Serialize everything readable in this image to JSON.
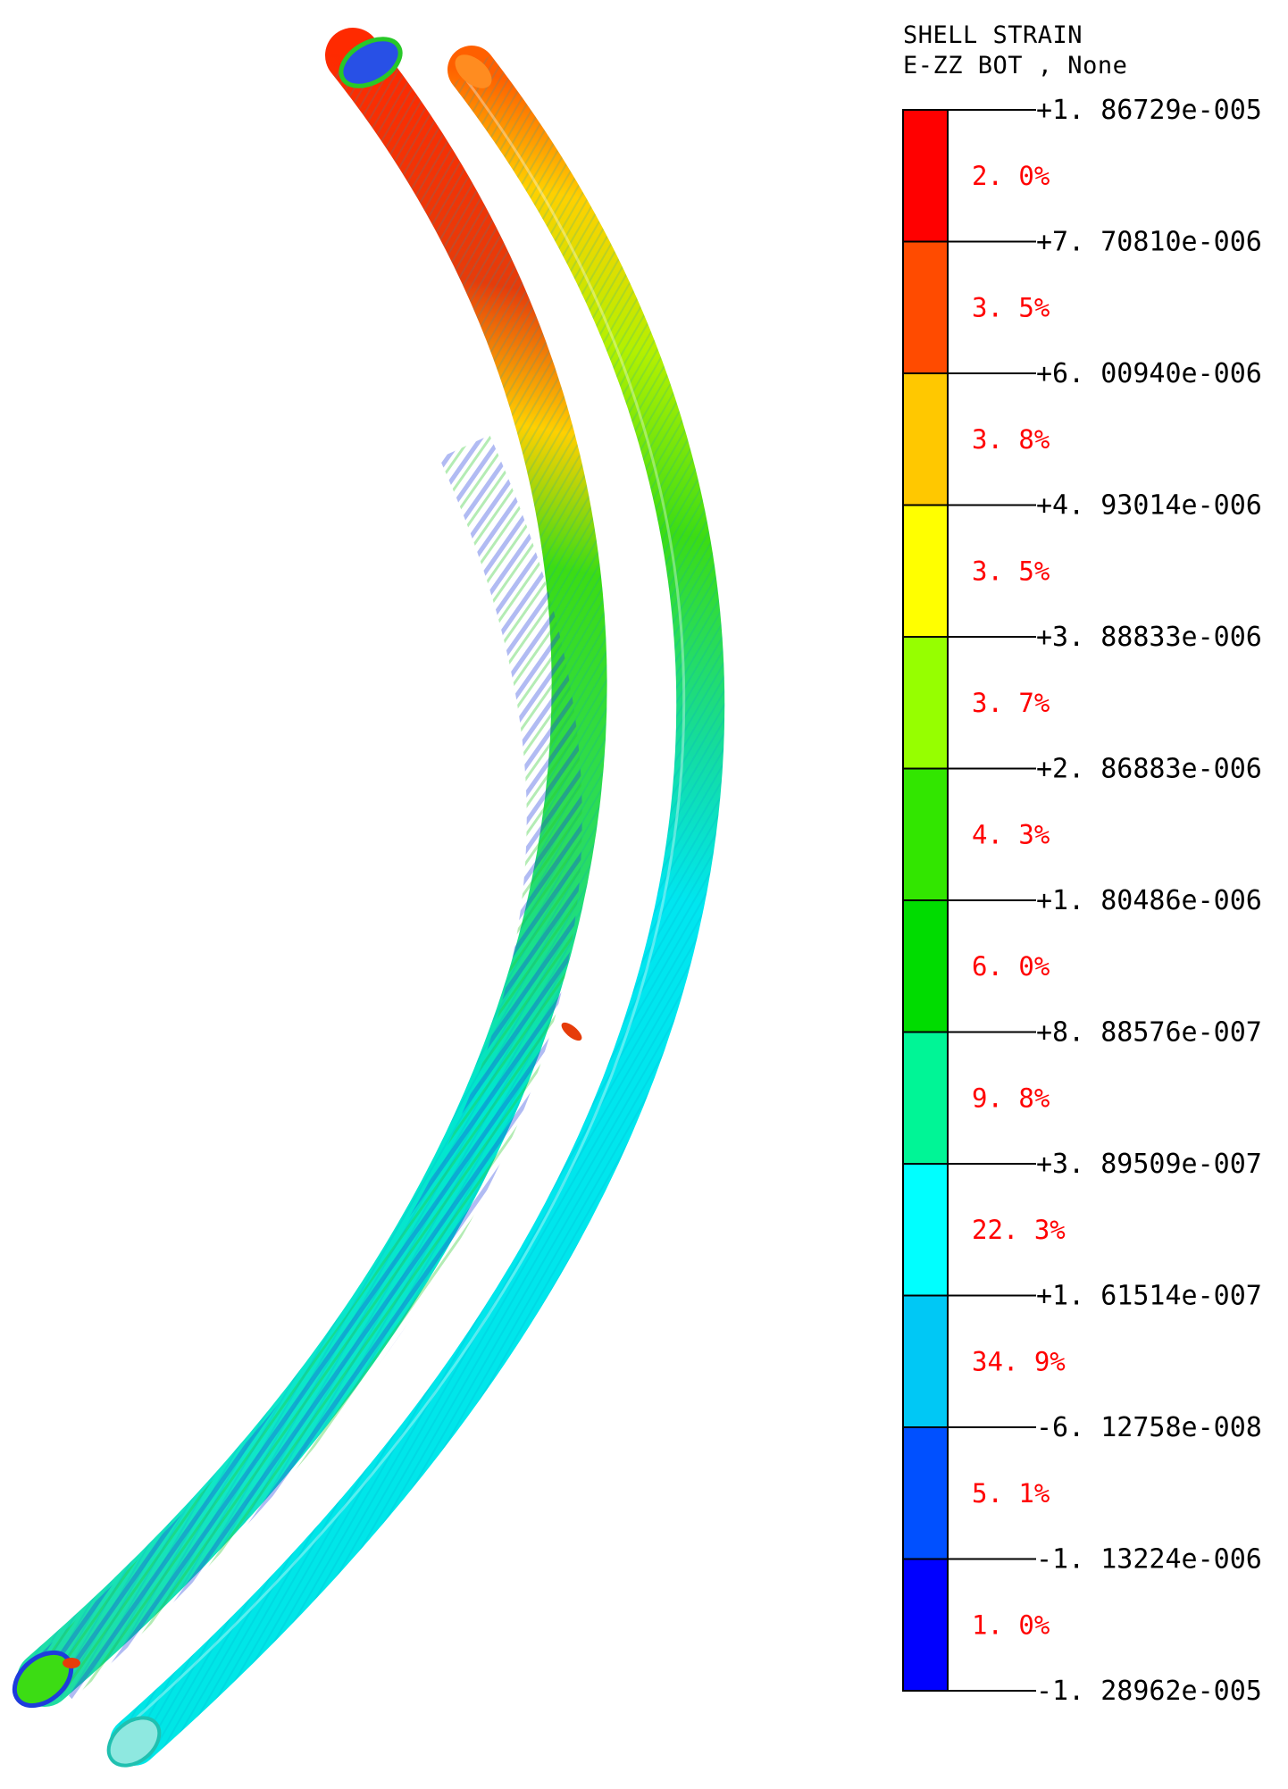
{
  "legend": {
    "title_line1": "SHELL STRAIN",
    "title_line2": "E-ZZ BOT , None",
    "ticks": [
      "+1. 86729e-005",
      "+7. 70810e-006",
      "+6. 00940e-006",
      "+4. 93014e-006",
      "+3. 88833e-006",
      "+2. 86883e-006",
      "+1. 80486e-006",
      "+8. 88576e-007",
      "+3. 89509e-007",
      "+1. 61514e-007",
      "-6. 12758e-008",
      "-1. 13224e-006",
      "-1. 28962e-005"
    ],
    "bands": [
      {
        "color": "#ff0000",
        "percent": "2. 0%"
      },
      {
        "color": "#ff4b00",
        "percent": "3. 5%"
      },
      {
        "color": "#ffc800",
        "percent": "3. 8%"
      },
      {
        "color": "#ffff00",
        "percent": "3. 5%"
      },
      {
        "color": "#96ff00",
        "percent": "3. 7%"
      },
      {
        "color": "#32e600",
        "percent": "4. 3%"
      },
      {
        "color": "#00dc00",
        "percent": "6. 0%"
      },
      {
        "color": "#00f596",
        "percent": "9. 8%"
      },
      {
        "color": "#00ffff",
        "percent": "22. 3%"
      },
      {
        "color": "#00c8f5",
        "percent": "34. 9%"
      },
      {
        "color": "#0050ff",
        "percent": "5. 1%"
      },
      {
        "color": "#0000ff",
        "percent": "1. 0%"
      }
    ]
  },
  "model": {
    "description_icon": "curved-pipe-contour",
    "colors": {
      "cyan": "#00e6f0",
      "green": "#3cdc14",
      "red": "#e63c0a",
      "orange": "#ff8c00",
      "yellow": "#f0e600",
      "blue": "#1e3cdc"
    }
  }
}
